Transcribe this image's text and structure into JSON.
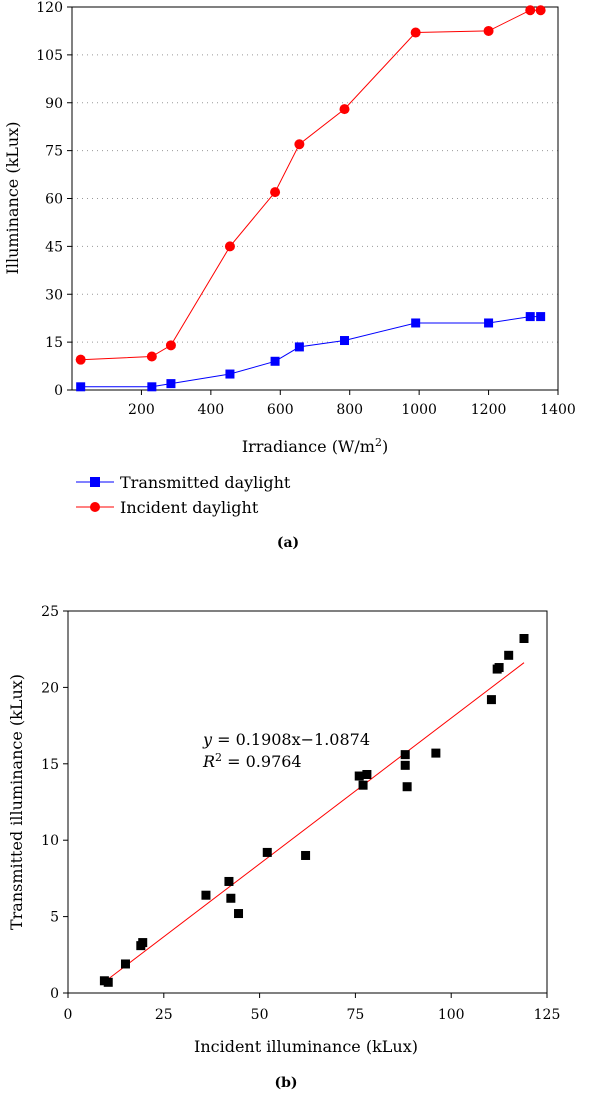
{
  "chart_data": [
    {
      "type": "line",
      "caption": "(a)",
      "xlabel": "Irradiance (W/m",
      "xlabel_sup": "2",
      "xlabel_end": ")",
      "ylabel": "Illuminance (kLux)",
      "xlim": [
        0,
        1400
      ],
      "ylim": [
        0,
        120
      ],
      "xticks": [
        200,
        400,
        600,
        800,
        1000,
        1200,
        1400
      ],
      "yticks": [
        0,
        15,
        30,
        45,
        60,
        75,
        90,
        105,
        120
      ],
      "grid": "horizontal dotted",
      "legend_position": "below",
      "series": [
        {
          "name": "Transmitted daylight",
          "color": "#0000ff",
          "marker": "square",
          "x": [
            25,
            230,
            285,
            455,
            585,
            655,
            785,
            990,
            1200,
            1320,
            1350
          ],
          "y": [
            1,
            1,
            2,
            5,
            9,
            13.5,
            15.5,
            21,
            21,
            23,
            23
          ]
        },
        {
          "name": "Incident daylight",
          "color": "#ff0000",
          "marker": "circle",
          "x": [
            25,
            230,
            285,
            455,
            585,
            655,
            785,
            990,
            1200,
            1320,
            1350
          ],
          "y": [
            9.5,
            10.5,
            14,
            45,
            62,
            77,
            88,
            112,
            112.5,
            119,
            119
          ]
        }
      ]
    },
    {
      "type": "scatter",
      "caption": "(b)",
      "xlabel": "Incident illuminance (kLux)",
      "ylabel": "Transmitted illuminance (kLux)",
      "xlim": [
        0,
        125
      ],
      "ylim": [
        0,
        25
      ],
      "xticks": [
        0,
        25,
        50,
        75,
        100,
        125
      ],
      "yticks": [
        0,
        5,
        10,
        15,
        20,
        25
      ],
      "grid": "none",
      "marker_color": "#000000",
      "fit_color": "#ff0000",
      "equation_y": "y",
      "equation_rest": " = 0.1908x−1.0874",
      "r2_label": "R",
      "r2_sup": "2",
      "r2_rest": " = 0.9764",
      "fit": {
        "slope": 0.1908,
        "intercept": -1.0874,
        "x_range": [
          10,
          119
        ]
      },
      "points": {
        "x": [
          9.5,
          10.5,
          15,
          19,
          19.5,
          36,
          42,
          42.5,
          44.5,
          52,
          62,
          76,
          77,
          78,
          88,
          88,
          88.5,
          96,
          110.5,
          112,
          112.5,
          115,
          119
        ],
        "y": [
          0.8,
          0.7,
          1.9,
          3.1,
          3.3,
          6.4,
          7.3,
          6.2,
          5.2,
          9.2,
          9.0,
          14.2,
          13.6,
          14.3,
          15.6,
          14.9,
          13.5,
          15.7,
          19.2,
          21.2,
          21.3,
          22.1,
          23.2
        ]
      }
    }
  ]
}
